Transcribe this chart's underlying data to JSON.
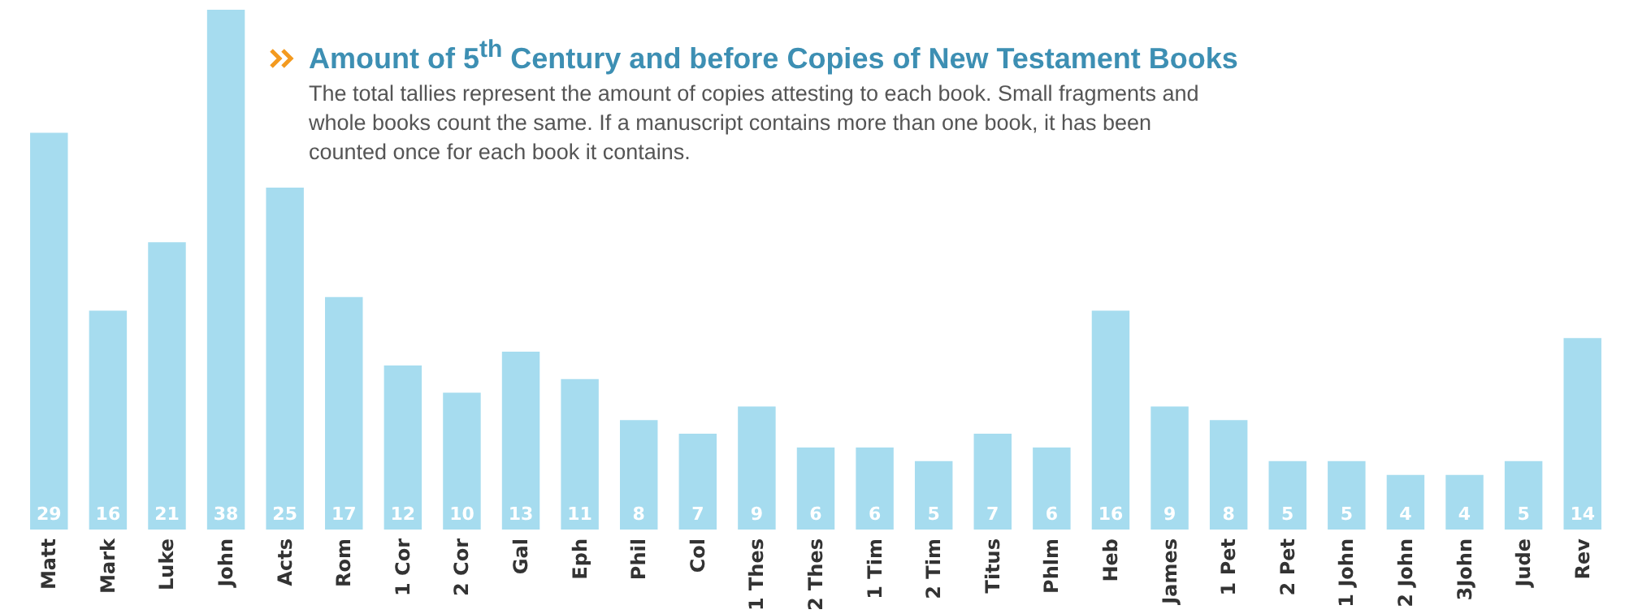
{
  "chart_data": {
    "type": "bar",
    "title": "Amount of 5$^{th}$ Century and before Copies of New Testament Books",
    "subtitle": "The total tallies represent the amount of copies attesting to each book. Small fragments and whole books count the same. If a manuscript contains more than one book, it has been counted once for each book it contains.",
    "categories": [
      "Matt",
      "Mark",
      "Luke",
      "John",
      "Acts",
      "Rom",
      "1 Cor",
      "2 Cor",
      "Gal",
      "Eph",
      "Phil",
      "Col",
      "1 Thes",
      "2 Thes",
      "1 Tim",
      "2 Tim",
      "Titus",
      "Phlm",
      "Heb",
      "James",
      "1 Pet",
      "2 Pet",
      "1 John",
      "2 John",
      "3John",
      "Jude",
      "Rev"
    ],
    "values": [
      29,
      16,
      21,
      38,
      25,
      17,
      12,
      10,
      13,
      11,
      8,
      7,
      9,
      6,
      6,
      5,
      7,
      6,
      16,
      9,
      8,
      5,
      5,
      4,
      4,
      5,
      14
    ],
    "color": "#a6dcef",
    "data_labels": true
  }
}
